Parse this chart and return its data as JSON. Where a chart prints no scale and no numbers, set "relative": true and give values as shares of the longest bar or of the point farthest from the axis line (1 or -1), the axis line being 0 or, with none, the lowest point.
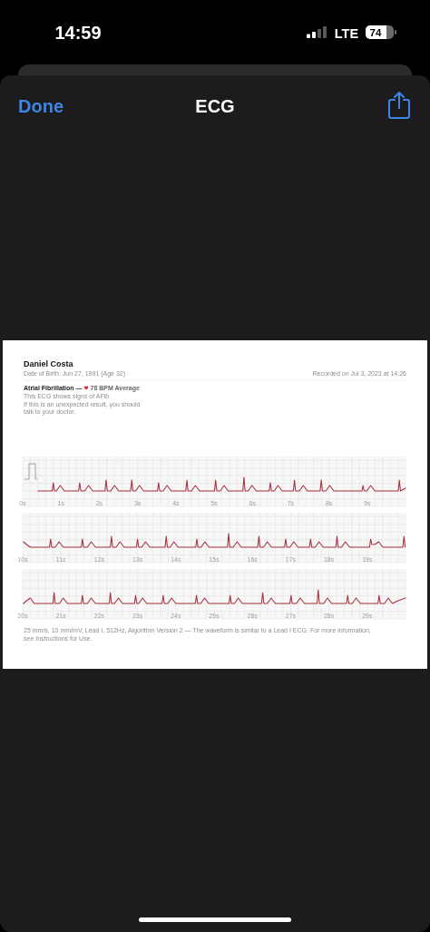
{
  "chart_data": [
    {
      "type": "line",
      "title": "ECG",
      "annotations": [
        "14:59",
        "LTE",
        "74",
        "Done",
        "Daniel Costa",
        "Date of Birth: Jun 27, 1991 (Age 32)",
        "Recorded on Jul 3, 2023 at 14:26",
        "Atrial Fibrillation —",
        "78 BPM Average",
        "This ECG shows signs of AFib.",
        "If this is an unexpected result, you should",
        "talk to your doctor."
      ],
      "relative": true,
      "grid": true,
      "tick_labels": "x",
      "xlim": [
        0,
        10
      ],
      "xticks": [
        {
          "value": 0,
          "label": "0s"
        },
        {
          "value": 1,
          "label": "1s"
        },
        {
          "value": 2,
          "label": "2s"
        },
        {
          "value": 3,
          "label": "3s"
        },
        {
          "value": 4,
          "label": "4s"
        },
        {
          "value": 5,
          "label": "5s"
        },
        {
          "value": 6,
          "label": "6s"
        },
        {
          "value": 7,
          "label": "7s"
        },
        {
          "value": 8,
          "label": "8s"
        },
        {
          "value": 9,
          "label": "9s"
        }
      ],
      "x": [
        0.4,
        0.77,
        0.8,
        0.83,
        0.88,
        0.98,
        1.09,
        1.46,
        1.49,
        1.52,
        1.62,
        1.72,
        1.83,
        2.15,
        2.18,
        2.21,
        2.3,
        2.4,
        2.51,
        2.82,
        2.85,
        2.88,
        2.95,
        3.05,
        3.16,
        3.52,
        3.55,
        3.58,
        3.67,
        3.77,
        3.88,
        4.26,
        4.29,
        4.32,
        4.41,
        4.51,
        4.62,
        5.01,
        5.04,
        5.07,
        5.16,
        5.26,
        5.37,
        5.75,
        5.78,
        5.81,
        5.89,
        5.99,
        6.1,
        6.44,
        6.47,
        6.5,
        6.57,
        6.67,
        6.78,
        7.07,
        7.1,
        7.13,
        7.23,
        7.33,
        7.44,
        7.77,
        7.8,
        7.83,
        7.92,
        8.02,
        8.13,
        8.86,
        8.89,
        8.92,
        8.99,
        9.09,
        9.2,
        9.81,
        9.84,
        9.87,
        10.0
      ],
      "series": [
        {
          "color": "#a8323e",
          "values": [
            0,
            0,
            0.6,
            0,
            0,
            0.4,
            0,
            0,
            0.6,
            0,
            0,
            0.4,
            0,
            0,
            0.8,
            0,
            0,
            0.4,
            0,
            0,
            0.8,
            0,
            0,
            0.4,
            0,
            0,
            0.6,
            0,
            0,
            0.4,
            0,
            0,
            0.8,
            0,
            0,
            0.4,
            0,
            0,
            0.8,
            0,
            0,
            0.4,
            0,
            0,
            1,
            0,
            0,
            0.4,
            0,
            0,
            0.6,
            0,
            0,
            0.4,
            0,
            0,
            0.8,
            0,
            0,
            0.4,
            0,
            0,
            0.8,
            0,
            0,
            0.4,
            0,
            0,
            0.4,
            0,
            0,
            0.4,
            0,
            0,
            0.8,
            0,
            0.2
          ]
        }
      ]
    },
    {
      "type": "line",
      "relative": true,
      "grid": true,
      "tick_labels": "x",
      "xlim": [
        10,
        20
      ],
      "xticks": [
        {
          "value": 10,
          "label": "10s"
        },
        {
          "value": 11,
          "label": "11s"
        },
        {
          "value": 12,
          "label": "12s"
        },
        {
          "value": 13,
          "label": "13s"
        },
        {
          "value": 14,
          "label": "14s"
        },
        {
          "value": 15,
          "label": "15s"
        },
        {
          "value": 16,
          "label": "16s"
        },
        {
          "value": 17,
          "label": "17s"
        },
        {
          "value": 18,
          "label": "18s"
        },
        {
          "value": 19,
          "label": "19s"
        }
      ],
      "x": [
        10.02,
        10.1,
        10.2,
        10.7,
        10.73,
        10.76,
        10.85,
        10.95,
        11.06,
        11.53,
        11.56,
        11.59,
        11.69,
        11.79,
        11.9,
        12.29,
        12.32,
        12.35,
        12.44,
        12.54,
        12.65,
        12.97,
        13.0,
        13.03,
        13.11,
        13.21,
        13.32,
        13.72,
        13.75,
        13.78,
        13.85,
        13.95,
        14.06,
        14.52,
        14.55,
        14.58,
        14.66,
        14.76,
        14.87,
        15.35,
        15.38,
        15.41,
        15.5,
        15.6,
        15.71,
        16.14,
        16.17,
        16.2,
        16.29,
        16.39,
        16.5,
        16.84,
        16.87,
        16.9,
        16.98,
        17.08,
        17.19,
        17.49,
        17.52,
        17.55,
        17.64,
        17.74,
        17.85,
        18.18,
        18.21,
        18.24,
        18.33,
        18.43,
        18.54,
        19.06,
        19.09,
        19.12,
        19.2,
        19.3,
        19.41,
        19.93,
        19.96,
        19.99
      ],
      "series": [
        {
          "color": "#a8323e",
          "values": [
            0.4,
            0.2,
            0,
            0,
            0.6,
            0,
            0,
            0.4,
            0,
            0,
            0.6,
            0,
            0,
            0.4,
            0,
            0,
            0.8,
            0,
            0,
            0.4,
            0,
            0,
            0.6,
            0,
            0,
            0.4,
            0,
            0,
            0.8,
            0,
            0,
            0.4,
            0,
            0,
            0.6,
            0,
            0,
            0.4,
            0,
            0,
            1,
            0,
            0,
            0.4,
            0,
            0,
            0.8,
            0,
            0,
            0.4,
            0,
            0,
            0.6,
            0,
            0,
            0.4,
            0,
            0,
            0.6,
            0,
            0,
            0.4,
            0,
            0,
            0.8,
            0,
            0,
            0.4,
            0,
            0,
            0.6,
            0.2,
            0.2,
            0.4,
            0,
            0,
            0.8,
            0
          ]
        }
      ]
    },
    {
      "type": "line",
      "annotations": [
        "25 mm/s, 10 mm/mV, Lead I, 512Hz, Algorithm Version 2 — The waveform is similar to a Lead I ECG. For more information, see Instructions for Use."
      ],
      "relative": true,
      "grid": true,
      "tick_labels": "x",
      "xlim": [
        20,
        30
      ],
      "xticks": [
        {
          "value": 20,
          "label": "20s"
        },
        {
          "value": 21,
          "label": "21s"
        },
        {
          "value": 22,
          "label": "22s"
        },
        {
          "value": 23,
          "label": "23s"
        },
        {
          "value": 24,
          "label": "24s"
        },
        {
          "value": 25,
          "label": "25s"
        },
        {
          "value": 26,
          "label": "26s"
        },
        {
          "value": 27,
          "label": "27s"
        },
        {
          "value": 28,
          "label": "28s"
        },
        {
          "value": 29,
          "label": "29s"
        }
      ],
      "x": [
        20.02,
        20.1,
        20.2,
        20.3,
        20.79,
        20.82,
        20.85,
        20.96,
        21.06,
        21.17,
        21.53,
        21.56,
        21.59,
        21.69,
        21.79,
        21.9,
        22.26,
        22.29,
        22.32,
        22.4,
        22.5,
        22.61,
        22.92,
        22.95,
        22.98,
        23.03,
        23.13,
        23.24,
        23.64,
        23.67,
        23.7,
        23.79,
        23.89,
        24.0,
        24.51,
        24.54,
        24.57,
        24.65,
        24.75,
        24.86,
        25.39,
        25.42,
        25.45,
        25.53,
        25.63,
        25.74,
        26.24,
        26.27,
        26.3,
        26.39,
        26.49,
        26.6,
        26.98,
        27.01,
        27.04,
        27.15,
        27.25,
        27.36,
        27.69,
        27.72,
        27.75,
        27.86,
        27.96,
        28.07,
        28.46,
        28.49,
        28.52,
        28.61,
        28.71,
        28.82,
        29.28,
        29.31,
        29.34,
        29.45,
        29.55,
        29.66,
        29.8,
        30.0
      ],
      "series": [
        {
          "color": "#a8323e",
          "values": [
            0,
            0.2,
            0.4,
            0,
            0,
            0.8,
            0,
            0,
            0.4,
            0,
            0,
            0.6,
            0,
            0,
            0.4,
            0,
            0,
            0.8,
            0,
            0,
            0.4,
            0,
            0,
            0.6,
            0,
            0,
            0.4,
            0,
            0,
            0.6,
            0,
            0,
            0.4,
            0,
            0,
            0.6,
            0,
            0,
            0.4,
            0,
            0,
            0.6,
            0,
            0,
            0.4,
            0,
            0,
            0.8,
            0,
            0,
            0.4,
            0,
            0,
            0.6,
            0,
            0,
            0.4,
            0,
            0,
            1,
            0,
            0,
            0.4,
            0,
            0,
            0.6,
            0,
            0,
            0.4,
            0,
            0,
            0.6,
            0,
            0,
            0.4,
            0,
            0.2,
            0.4
          ]
        }
      ]
    }
  ]
}
